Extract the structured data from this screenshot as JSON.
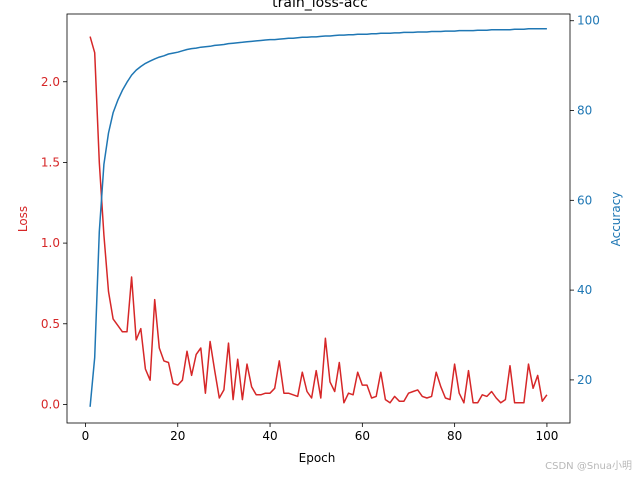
{
  "chart_data": {
    "type": "line",
    "title": "train_loss-acc",
    "xlabel": "Epoch",
    "ylabel_left": "Loss",
    "ylabel_right": "Accuracy",
    "xlim": [
      -4.0,
      105.0
    ],
    "ylim_left": [
      -0.115,
      2.42
    ],
    "ylim_right": [
      10.4,
      101.5
    ],
    "xticks": [
      0,
      20,
      40,
      60,
      80,
      100
    ],
    "yticks_left": [
      0.0,
      0.5,
      1.0,
      1.5,
      2.0
    ],
    "yticks_right": [
      20,
      40,
      60,
      80,
      100
    ],
    "xtick_labels": [
      "0",
      "20",
      "40",
      "60",
      "80",
      "100"
    ],
    "ytick_labels_left": [
      "0.0",
      "0.5",
      "1.0",
      "1.5",
      "2.0"
    ],
    "ytick_labels_right": [
      "20",
      "40",
      "60",
      "80",
      "100"
    ],
    "grid": false,
    "legend": "none",
    "colors": {
      "loss": "#d62728",
      "accuracy": "#1f77b4",
      "axis": "#000000"
    },
    "x": [
      1,
      2,
      3,
      4,
      5,
      6,
      7,
      8,
      9,
      10,
      11,
      12,
      13,
      14,
      15,
      16,
      17,
      18,
      19,
      20,
      21,
      22,
      23,
      24,
      25,
      26,
      27,
      28,
      29,
      30,
      31,
      32,
      33,
      34,
      35,
      36,
      37,
      38,
      39,
      40,
      41,
      42,
      43,
      44,
      45,
      46,
      47,
      48,
      49,
      50,
      51,
      52,
      53,
      54,
      55,
      56,
      57,
      58,
      59,
      60,
      61,
      62,
      63,
      64,
      65,
      66,
      67,
      68,
      69,
      70,
      71,
      72,
      73,
      74,
      75,
      76,
      77,
      78,
      79,
      80,
      81,
      82,
      83,
      84,
      85,
      86,
      87,
      88,
      89,
      90,
      91,
      92,
      93,
      94,
      95,
      96,
      97,
      98,
      99,
      100
    ],
    "series": [
      {
        "name": "Loss",
        "axis": "left",
        "values": [
          2.28,
          2.18,
          1.5,
          1.05,
          0.7,
          0.53,
          0.49,
          0.45,
          0.45,
          0.79,
          0.4,
          0.47,
          0.22,
          0.15,
          0.65,
          0.35,
          0.27,
          0.26,
          0.13,
          0.12,
          0.15,
          0.33,
          0.18,
          0.31,
          0.35,
          0.07,
          0.39,
          0.21,
          0.04,
          0.09,
          0.38,
          0.03,
          0.28,
          0.03,
          0.25,
          0.11,
          0.06,
          0.06,
          0.07,
          0.07,
          0.1,
          0.27,
          0.07,
          0.07,
          0.06,
          0.05,
          0.2,
          0.08,
          0.04,
          0.21,
          0.04,
          0.41,
          0.14,
          0.08,
          0.26,
          0.01,
          0.07,
          0.06,
          0.2,
          0.12,
          0.12,
          0.04,
          0.05,
          0.2,
          0.03,
          0.01,
          0.05,
          0.02,
          0.02,
          0.07,
          0.08,
          0.09,
          0.05,
          0.04,
          0.05,
          0.2,
          0.11,
          0.04,
          0.03,
          0.25,
          0.07,
          0.01,
          0.21,
          0.01,
          0.01,
          0.06,
          0.05,
          0.08,
          0.04,
          0.01,
          0.03,
          0.24,
          0.01,
          0.01,
          0.01,
          0.25,
          0.1,
          0.18,
          0.02,
          0.06
        ]
      },
      {
        "name": "Accuracy",
        "axis": "right",
        "values": [
          14.0,
          25.0,
          53.0,
          68.0,
          75.0,
          79.5,
          82.3,
          84.5,
          86.3,
          87.9,
          89.0,
          89.8,
          90.5,
          91.0,
          91.5,
          91.9,
          92.2,
          92.6,
          92.8,
          93.0,
          93.3,
          93.6,
          93.8,
          93.9,
          94.1,
          94.2,
          94.3,
          94.5,
          94.6,
          94.7,
          94.9,
          95.0,
          95.1,
          95.2,
          95.3,
          95.4,
          95.5,
          95.6,
          95.7,
          95.8,
          95.8,
          95.9,
          96.0,
          96.1,
          96.1,
          96.2,
          96.3,
          96.3,
          96.4,
          96.4,
          96.5,
          96.6,
          96.6,
          96.7,
          96.8,
          96.8,
          96.9,
          96.9,
          97.0,
          97.0,
          97.0,
          97.1,
          97.1,
          97.2,
          97.2,
          97.2,
          97.3,
          97.3,
          97.4,
          97.4,
          97.4,
          97.5,
          97.5,
          97.5,
          97.6,
          97.6,
          97.6,
          97.7,
          97.7,
          97.7,
          97.8,
          97.8,
          97.8,
          97.8,
          97.9,
          97.9,
          97.9,
          98.0,
          98.0,
          98.0,
          98.0,
          98.0,
          98.1,
          98.1,
          98.1,
          98.2,
          98.2,
          98.2,
          98.2,
          98.2
        ]
      }
    ]
  },
  "watermark": "CSDN @Snua小明"
}
